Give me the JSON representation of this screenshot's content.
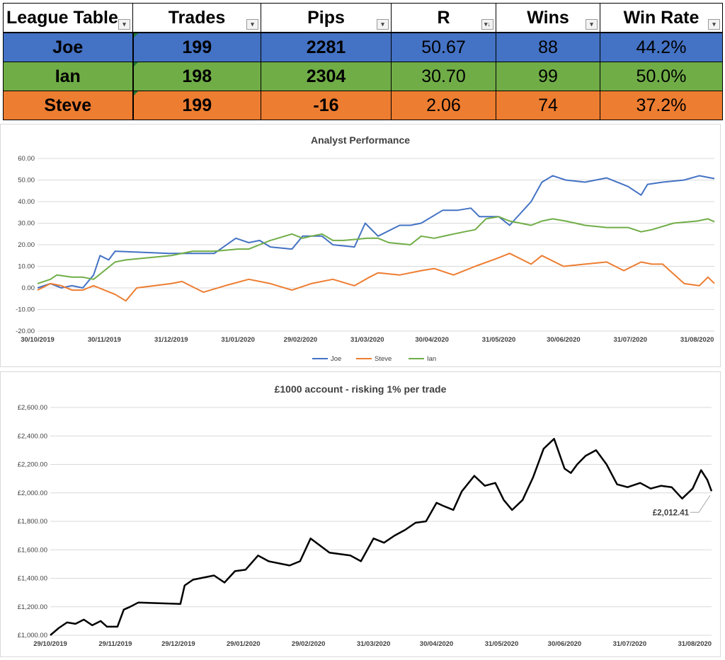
{
  "table": {
    "headers": [
      "League Table",
      "Trades",
      "Pips",
      "R",
      "Wins",
      "Win Rate"
    ],
    "rows": [
      {
        "name": "Joe",
        "trades": "199",
        "pips": "2281",
        "r": "50.67",
        "wins": "88",
        "win_rate": "44.2%",
        "color": "#4472c4"
      },
      {
        "name": "Ian",
        "trades": "198",
        "pips": "2304",
        "r": "30.70",
        "wins": "99",
        "win_rate": "50.0%",
        "color": "#70ad47"
      },
      {
        "name": "Steve",
        "trades": "199",
        "pips": "-16",
        "r": "2.06",
        "wins": "74",
        "win_rate": "37.2%",
        "color": "#ed7d31"
      }
    ]
  },
  "chart_data": [
    {
      "type": "line",
      "title": "Analyst Performance",
      "xlabel": "",
      "ylabel": "",
      "ylim": [
        -20,
        60
      ],
      "yticks": [
        "60.00",
        "50.00",
        "40.00",
        "30.00",
        "20.00",
        "10.00",
        "0.00",
        "-10.00",
        "-20.00"
      ],
      "xticks": [
        "30/10/2019",
        "30/11/2019",
        "31/12/2019",
        "31/01/2020",
        "29/02/2020",
        "31/03/2020",
        "30/04/2020",
        "31/05/2020",
        "30/06/2020",
        "31/07/2020",
        "31/08/2020"
      ],
      "x_range": [
        "2019-10-30",
        "2020-09-08"
      ],
      "legend_position": "bottom",
      "grid": true,
      "series": [
        {
          "name": "Joe",
          "color": "#4472c4",
          "points": [
            [
              "2019-10-30",
              0
            ],
            [
              "2019-11-05",
              2
            ],
            [
              "2019-11-10",
              0
            ],
            [
              "2019-11-15",
              1
            ],
            [
              "2019-11-20",
              0
            ],
            [
              "2019-11-25",
              6
            ],
            [
              "2019-11-28",
              15
            ],
            [
              "2019-12-02",
              13
            ],
            [
              "2019-12-05",
              17
            ],
            [
              "2019-12-30",
              16
            ],
            [
              "2020-01-10",
              16
            ],
            [
              "2020-01-20",
              16
            ],
            [
              "2020-01-30",
              23
            ],
            [
              "2020-02-05",
              21
            ],
            [
              "2020-02-10",
              22
            ],
            [
              "2020-02-15",
              19
            ],
            [
              "2020-02-25",
              18
            ],
            [
              "2020-03-01",
              24
            ],
            [
              "2020-03-10",
              24
            ],
            [
              "2020-03-15",
              20
            ],
            [
              "2020-03-25",
              19
            ],
            [
              "2020-03-30",
              30
            ],
            [
              "2020-04-05",
              24
            ],
            [
              "2020-04-15",
              29
            ],
            [
              "2020-04-20",
              29
            ],
            [
              "2020-04-25",
              30
            ],
            [
              "2020-05-05",
              36
            ],
            [
              "2020-05-12",
              36
            ],
            [
              "2020-05-18",
              37
            ],
            [
              "2020-05-22",
              33
            ],
            [
              "2020-05-31",
              33
            ],
            [
              "2020-06-05",
              29
            ],
            [
              "2020-06-15",
              40
            ],
            [
              "2020-06-20",
              49
            ],
            [
              "2020-06-25",
              52
            ],
            [
              "2020-07-01",
              50
            ],
            [
              "2020-07-10",
              49
            ],
            [
              "2020-07-20",
              51
            ],
            [
              "2020-07-30",
              47
            ],
            [
              "2020-08-05",
              43
            ],
            [
              "2020-08-08",
              48
            ],
            [
              "2020-08-15",
              49
            ],
            [
              "2020-08-25",
              50
            ],
            [
              "2020-09-01",
              52
            ],
            [
              "2020-09-08",
              50.67
            ]
          ]
        },
        {
          "name": "Steve",
          "color": "#ed7d31",
          "points": [
            [
              "2019-10-30",
              -1
            ],
            [
              "2019-11-05",
              2
            ],
            [
              "2019-11-10",
              1
            ],
            [
              "2019-11-15",
              -1
            ],
            [
              "2019-11-20",
              -1
            ],
            [
              "2019-11-25",
              1
            ],
            [
              "2019-11-30",
              -1
            ],
            [
              "2019-12-05",
              -3
            ],
            [
              "2019-12-10",
              -6
            ],
            [
              "2019-12-15",
              0
            ],
            [
              "2019-12-31",
              2
            ],
            [
              "2020-01-05",
              3
            ],
            [
              "2020-01-15",
              -2
            ],
            [
              "2020-01-25",
              1
            ],
            [
              "2020-02-05",
              4
            ],
            [
              "2020-02-15",
              2
            ],
            [
              "2020-02-25",
              -1
            ],
            [
              "2020-03-05",
              2
            ],
            [
              "2020-03-15",
              4
            ],
            [
              "2020-03-25",
              1
            ],
            [
              "2020-04-01",
              5
            ],
            [
              "2020-04-05",
              7
            ],
            [
              "2020-04-15",
              6
            ],
            [
              "2020-04-25",
              8
            ],
            [
              "2020-05-01",
              9
            ],
            [
              "2020-05-10",
              6
            ],
            [
              "2020-05-20",
              10
            ],
            [
              "2020-05-31",
              14
            ],
            [
              "2020-06-05",
              16
            ],
            [
              "2020-06-15",
              11
            ],
            [
              "2020-06-20",
              15
            ],
            [
              "2020-06-30",
              10
            ],
            [
              "2020-07-10",
              11
            ],
            [
              "2020-07-20",
              12
            ],
            [
              "2020-07-28",
              8
            ],
            [
              "2020-08-05",
              12
            ],
            [
              "2020-08-10",
              11
            ],
            [
              "2020-08-15",
              11
            ],
            [
              "2020-08-25",
              2
            ],
            [
              "2020-09-01",
              1
            ],
            [
              "2020-09-05",
              5
            ],
            [
              "2020-09-08",
              2.06
            ]
          ]
        },
        {
          "name": "Ian",
          "color": "#70ad47",
          "points": [
            [
              "2019-10-30",
              2
            ],
            [
              "2019-11-05",
              4
            ],
            [
              "2019-11-08",
              6
            ],
            [
              "2019-11-15",
              5
            ],
            [
              "2019-11-20",
              5
            ],
            [
              "2019-11-25",
              4
            ],
            [
              "2019-11-30",
              8
            ],
            [
              "2019-12-05",
              12
            ],
            [
              "2019-12-10",
              13
            ],
            [
              "2019-12-31",
              15
            ],
            [
              "2020-01-10",
              17
            ],
            [
              "2020-01-20",
              17
            ],
            [
              "2020-01-31",
              18
            ],
            [
              "2020-02-05",
              18
            ],
            [
              "2020-02-15",
              22
            ],
            [
              "2020-02-25",
              25
            ],
            [
              "2020-03-01",
              23
            ],
            [
              "2020-03-05",
              24
            ],
            [
              "2020-03-10",
              25
            ],
            [
              "2020-03-15",
              22
            ],
            [
              "2020-03-20",
              22
            ],
            [
              "2020-03-31",
              23
            ],
            [
              "2020-04-05",
              23
            ],
            [
              "2020-04-10",
              21
            ],
            [
              "2020-04-20",
              20
            ],
            [
              "2020-04-25",
              24
            ],
            [
              "2020-05-01",
              23
            ],
            [
              "2020-05-10",
              25
            ],
            [
              "2020-05-15",
              26
            ],
            [
              "2020-05-20",
              27
            ],
            [
              "2020-05-25",
              32
            ],
            [
              "2020-05-31",
              33
            ],
            [
              "2020-06-05",
              31
            ],
            [
              "2020-06-10",
              30
            ],
            [
              "2020-06-15",
              29
            ],
            [
              "2020-06-20",
              31
            ],
            [
              "2020-06-25",
              32
            ],
            [
              "2020-07-01",
              31
            ],
            [
              "2020-07-10",
              29
            ],
            [
              "2020-07-20",
              28
            ],
            [
              "2020-07-30",
              28
            ],
            [
              "2020-08-05",
              26
            ],
            [
              "2020-08-10",
              27
            ],
            [
              "2020-08-20",
              30
            ],
            [
              "2020-08-31",
              31
            ],
            [
              "2020-09-05",
              32
            ],
            [
              "2020-09-08",
              30.7
            ]
          ]
        }
      ]
    },
    {
      "type": "line",
      "title": "£1000 account - risking 1% per trade",
      "xlabel": "",
      "ylabel": "",
      "ylim": [
        1000,
        2600
      ],
      "yticks": [
        "£2,600.00",
        "£2,400.00",
        "£2,200.00",
        "£2,000.00",
        "£1,800.00",
        "£1,600.00",
        "£1,400.00",
        "£1,200.00",
        "£1,000.00"
      ],
      "xticks": [
        "29/10/2019",
        "29/11/2019",
        "29/12/2019",
        "29/01/2020",
        "29/02/2020",
        "31/03/2020",
        "30/04/2020",
        "31/05/2020",
        "30/06/2020",
        "31/07/2020",
        "31/08/2020"
      ],
      "x_range": [
        "2019-10-29",
        "2020-09-08"
      ],
      "grid": true,
      "annotation": "£2,012.41",
      "series": [
        {
          "color": "#000000",
          "points": [
            [
              "2019-10-29",
              1000
            ],
            [
              "2019-11-02",
              1050
            ],
            [
              "2019-11-06",
              1090
            ],
            [
              "2019-11-10",
              1080
            ],
            [
              "2019-11-14",
              1110
            ],
            [
              "2019-11-18",
              1070
            ],
            [
              "2019-11-22",
              1100
            ],
            [
              "2019-11-25",
              1060
            ],
            [
              "2019-11-30",
              1060
            ],
            [
              "2019-12-03",
              1180
            ],
            [
              "2019-12-06",
              1200
            ],
            [
              "2019-12-10",
              1230
            ],
            [
              "2019-12-30",
              1220
            ],
            [
              "2020-01-01",
              1350
            ],
            [
              "2020-01-05",
              1390
            ],
            [
              "2020-01-15",
              1420
            ],
            [
              "2020-01-20",
              1370
            ],
            [
              "2020-01-25",
              1450
            ],
            [
              "2020-01-30",
              1460
            ],
            [
              "2020-02-05",
              1560
            ],
            [
              "2020-02-10",
              1520
            ],
            [
              "2020-02-20",
              1490
            ],
            [
              "2020-02-25",
              1520
            ],
            [
              "2020-03-01",
              1680
            ],
            [
              "2020-03-10",
              1580
            ],
            [
              "2020-03-20",
              1560
            ],
            [
              "2020-03-25",
              1520
            ],
            [
              "2020-03-31",
              1680
            ],
            [
              "2020-04-05",
              1650
            ],
            [
              "2020-04-10",
              1700
            ],
            [
              "2020-04-15",
              1740
            ],
            [
              "2020-04-20",
              1790
            ],
            [
              "2020-04-25",
              1800
            ],
            [
              "2020-04-30",
              1930
            ],
            [
              "2020-05-03",
              1910
            ],
            [
              "2020-05-08",
              1880
            ],
            [
              "2020-05-12",
              2010
            ],
            [
              "2020-05-18",
              2120
            ],
            [
              "2020-05-23",
              2050
            ],
            [
              "2020-05-28",
              2070
            ],
            [
              "2020-06-01",
              1950
            ],
            [
              "2020-06-05",
              1880
            ],
            [
              "2020-06-10",
              1950
            ],
            [
              "2020-06-15",
              2110
            ],
            [
              "2020-06-20",
              2310
            ],
            [
              "2020-06-25",
              2380
            ],
            [
              "2020-06-30",
              2170
            ],
            [
              "2020-07-03",
              2140
            ],
            [
              "2020-07-06",
              2200
            ],
            [
              "2020-07-10",
              2260
            ],
            [
              "2020-07-15",
              2300
            ],
            [
              "2020-07-20",
              2200
            ],
            [
              "2020-07-25",
              2060
            ],
            [
              "2020-07-30",
              2040
            ],
            [
              "2020-08-05",
              2070
            ],
            [
              "2020-08-10",
              2030
            ],
            [
              "2020-08-15",
              2050
            ],
            [
              "2020-08-20",
              2040
            ],
            [
              "2020-08-25",
              1960
            ],
            [
              "2020-08-30",
              2030
            ],
            [
              "2020-09-03",
              2160
            ],
            [
              "2020-09-06",
              2090
            ],
            [
              "2020-09-08",
              2012.41
            ]
          ]
        }
      ]
    }
  ]
}
